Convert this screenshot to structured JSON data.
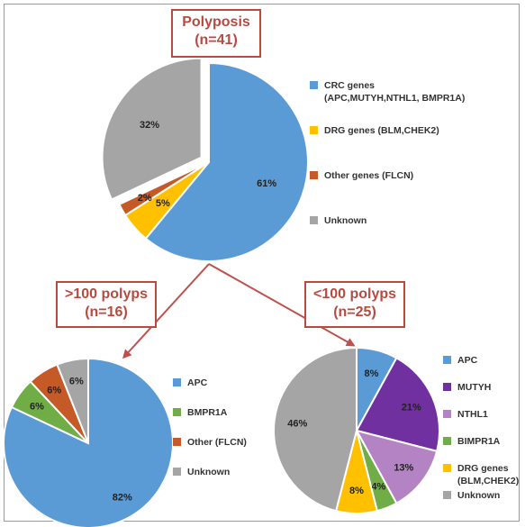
{
  "chart_data": [
    {
      "type": "pie",
      "title_lines": [
        "Polyposis",
        "(n=41)"
      ],
      "slices": [
        {
          "label": "CRC genes (APC,MUTYH,NTHL1, BMPR1A)",
          "legend_lines": [
            "CRC genes",
            "(APC,MUTYH,NTHL1, BMPR1A)"
          ],
          "value": 61,
          "display": "61%",
          "color": "#5b9bd5"
        },
        {
          "label": "DRG genes (BLM,CHEK2)",
          "legend_lines": [
            "DRG genes (BLM,CHEK2)"
          ],
          "value": 5,
          "display": "5%",
          "color": "#ffc000"
        },
        {
          "label": "Other genes (FLCN)",
          "legend_lines": [
            "Other genes (FLCN)"
          ],
          "value": 2,
          "display": "2%",
          "color": "#c55a28"
        },
        {
          "label": "Unknown",
          "legend_lines": [
            "Unknown"
          ],
          "value": 32,
          "display": "32%",
          "color": "#a5a5a5",
          "exploded": true
        }
      ]
    },
    {
      "type": "pie",
      "title_lines": [
        ">100 polyps",
        "(n=16)"
      ],
      "slices": [
        {
          "label": "APC",
          "legend_lines": [
            "APC"
          ],
          "value": 82,
          "display": "82%",
          "color": "#5b9bd5"
        },
        {
          "label": "BMPR1A",
          "legend_lines": [
            "BMPR1A"
          ],
          "value": 6,
          "display": "6%",
          "color": "#70ad47"
        },
        {
          "label": "Other (FLCN)",
          "legend_lines": [
            "Other (FLCN)"
          ],
          "value": 6,
          "display": "6%",
          "color": "#c55a28"
        },
        {
          "label": "Unknown",
          "legend_lines": [
            "Unknown"
          ],
          "value": 6,
          "display": "6%",
          "color": "#a5a5a5"
        }
      ]
    },
    {
      "type": "pie",
      "title_lines": [
        "<100 polyps",
        "(n=25)"
      ],
      "slices": [
        {
          "label": "APC",
          "legend_lines": [
            "APC"
          ],
          "value": 8,
          "display": "8%",
          "color": "#5b9bd5"
        },
        {
          "label": "MUTYH",
          "legend_lines": [
            "MUTYH"
          ],
          "value": 21,
          "display": "21%",
          "color": "#7030a0"
        },
        {
          "label": "NTHL1",
          "legend_lines": [
            "NTHL1"
          ],
          "value": 13,
          "display": "13%",
          "color": "#b383c3"
        },
        {
          "label": "BIMPR1A",
          "legend_lines": [
            "BIMPR1A"
          ],
          "value": 4,
          "display": "4%",
          "color": "#70ad47"
        },
        {
          "label": "DRG genes (BLM,CHEK2)",
          "legend_lines": [
            "DRG genes",
            "(BLM,CHEK2)"
          ],
          "value": 8,
          "display": "8%",
          "color": "#ffc000"
        },
        {
          "label": "Unknown",
          "legend_lines": [
            "Unknown"
          ],
          "value": 46,
          "display": "46%",
          "color": "#a5a5a5"
        }
      ]
    }
  ]
}
